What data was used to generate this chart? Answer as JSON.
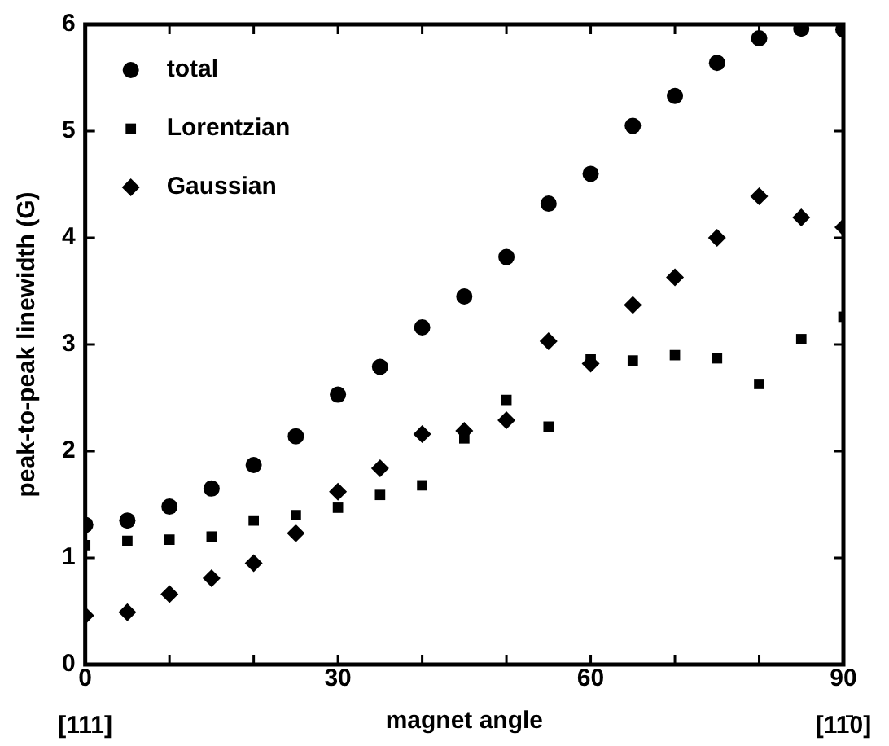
{
  "chart_data": {
    "type": "scatter",
    "xlabel": "magnet angle",
    "ylabel": "peak-to-peak linewidth (G)",
    "x": [
      0,
      5,
      10,
      15,
      20,
      25,
      30,
      35,
      40,
      45,
      50,
      55,
      60,
      65,
      70,
      75,
      80,
      85,
      90
    ],
    "series": [
      {
        "name": "total",
        "color": "#000000",
        "marker": "circle",
        "values": [
          1.31,
          1.35,
          1.48,
          1.65,
          1.87,
          2.14,
          2.53,
          2.79,
          3.16,
          3.45,
          3.82,
          4.32,
          4.6,
          5.05,
          5.33,
          5.64,
          5.87,
          5.96,
          5.95
        ]
      },
      {
        "name": "Lorentzian",
        "color": "#000000",
        "marker": "square",
        "values": [
          1.12,
          1.16,
          1.17,
          1.2,
          1.35,
          1.4,
          1.47,
          1.59,
          1.68,
          2.12,
          2.48,
          2.23,
          2.86,
          2.85,
          2.9,
          2.87,
          2.63,
          3.05,
          3.26
        ]
      },
      {
        "name": "Gaussian",
        "color": "#000000",
        "marker": "diamond",
        "values": [
          0.46,
          0.49,
          0.66,
          0.81,
          0.95,
          1.23,
          1.62,
          1.84,
          2.16,
          2.19,
          2.29,
          3.03,
          2.82,
          3.37,
          3.63,
          4.0,
          4.39,
          4.19,
          4.1
        ]
      }
    ],
    "xlim": [
      0,
      90
    ],
    "xticks": [
      0,
      {
        "value": 10,
        "label": null
      },
      {
        "value": 20,
        "label": null
      },
      30,
      {
        "value": 40,
        "label": null
      },
      {
        "value": 50,
        "label": null
      },
      60,
      {
        "value": 70,
        "label": null
      },
      {
        "value": 80,
        "label": null
      },
      90
    ],
    "ylim": [
      0,
      6
    ],
    "yticks": [
      0,
      1,
      2,
      3,
      4,
      5,
      6
    ],
    "legend": "top left",
    "annotations": [
      "[111]",
      "[11̄0]"
    ]
  }
}
